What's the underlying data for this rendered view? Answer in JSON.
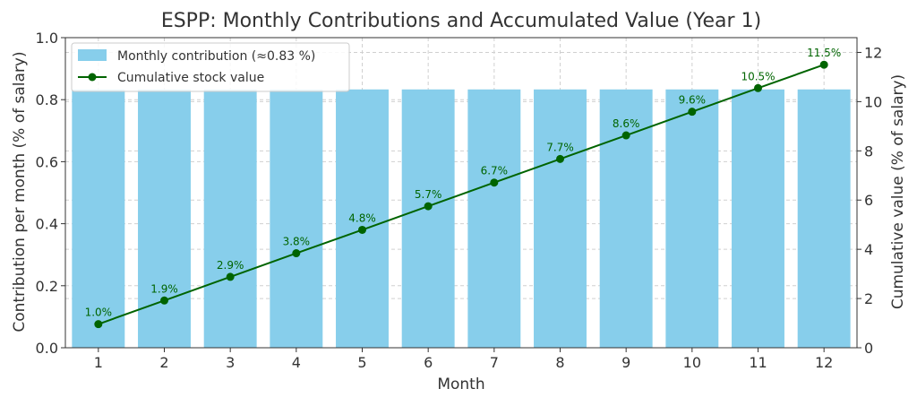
{
  "chart_data": {
    "type": "bar",
    "title": "ESPP: Monthly Contributions and Accumulated Value (Year 1)",
    "xlabel": "Month",
    "ylabel": "Contribution per month (% of salary)",
    "y2label": "Cumulative value (% of salary)",
    "categories": [
      "1",
      "2",
      "3",
      "4",
      "5",
      "6",
      "7",
      "8",
      "9",
      "10",
      "11",
      "12"
    ],
    "ylim": [
      0,
      1.0
    ],
    "y2lim": [
      0,
      12.6
    ],
    "yticks": [
      0.0,
      0.2,
      0.4,
      0.6,
      0.8,
      1.0
    ],
    "ytick_labels": [
      "0.0",
      "0.2",
      "0.4",
      "0.6",
      "0.8",
      "1.0"
    ],
    "y2ticks": [
      0,
      2,
      4,
      6,
      8,
      10,
      12
    ],
    "y2tick_labels": [
      "0",
      "2",
      "4",
      "6",
      "8",
      "10",
      "12"
    ],
    "grid": true,
    "legend_position": "top-left",
    "series": [
      {
        "name": "Monthly contribution (≈0.83 %)",
        "type": "bar",
        "axis": "left",
        "color": "#87CEEB",
        "values": [
          0.833,
          0.833,
          0.833,
          0.833,
          0.833,
          0.833,
          0.833,
          0.833,
          0.833,
          0.833,
          0.833,
          0.833
        ]
      },
      {
        "name": "Cumulative stock value",
        "type": "line",
        "axis": "right",
        "color": "#006400",
        "values": [
          0.96,
          1.92,
          2.88,
          3.84,
          4.79,
          5.75,
          6.71,
          7.67,
          8.63,
          9.59,
          10.55,
          11.5
        ],
        "labels": [
          "1.0%",
          "1.9%",
          "2.9%",
          "3.8%",
          "4.8%",
          "5.7%",
          "6.7%",
          "7.7%",
          "8.6%",
          "9.6%",
          "10.5%",
          "11.5%"
        ]
      }
    ]
  }
}
